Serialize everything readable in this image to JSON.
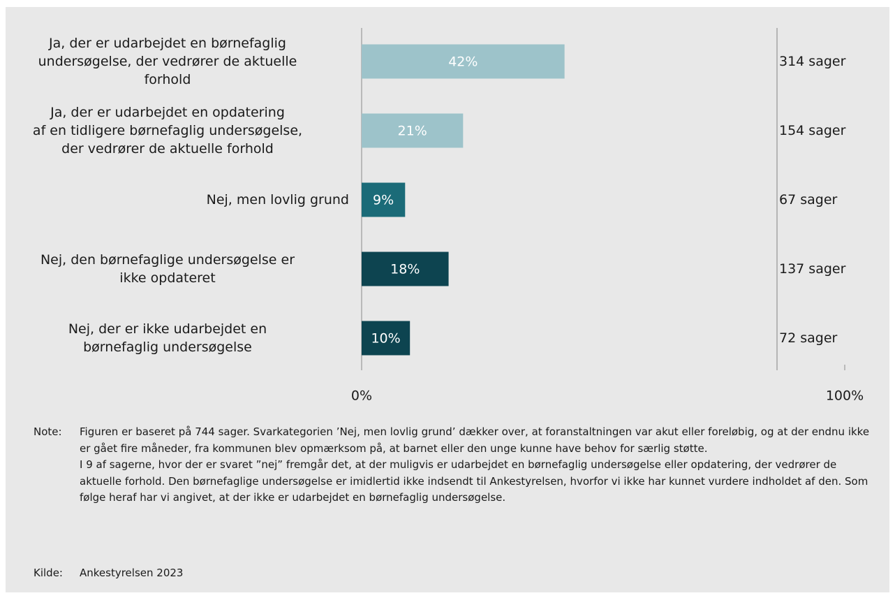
{
  "chart_data": {
    "type": "barh",
    "categories": [
      "Ja, der er udarbejdet en børnefaglig\nundersøgelse, der vedrører de aktuelle\nforhold",
      "Ja, der er udarbejdet en opdatering\naf en tidligere børnefaglig undersøgelse,\nder vedrører de aktuelle forhold",
      "Nej, men lovlig grund",
      "Nej, den børnefaglige undersøgelse er\nikke opdateret",
      "Nej, der er ikke udarbejdet en\nbørnefaglig undersøgelse"
    ],
    "values": [
      42,
      21,
      9,
      18,
      10
    ],
    "value_labels": [
      "42%",
      "21%",
      "9%",
      "18%",
      "10%"
    ],
    "colors": [
      "#9dc3ca",
      "#9dc3ca",
      "#1b6b78",
      "#0d4450",
      "#0d4450"
    ],
    "annotations": [
      "314 sager",
      "154 sager",
      "67 sager",
      "137 sager",
      "72 sager"
    ],
    "xlim": [
      0,
      100
    ],
    "xticks": [
      {
        "value": 0,
        "label": "0%"
      },
      {
        "value": 100,
        "label": "100%"
      }
    ],
    "note_label": "Note:",
    "notes": [
      "Figuren er baseret på 744 sager. Svarkategorien ’Nej, men lovlig grund’ dækker over, at foranstaltningen var akut eller foreløbig, og at der endnu ikke er gået fire måneder, fra kommunen blev opmærksom på, at barnet eller den unge kunne have behov for særlig støtte.",
      "I 9 af sagerne, hvor der er svaret ”nej” fremgår det, at der muligvis er udarbejdet en børnefaglig undersøgelse eller opdatering, der vedrører de aktuelle forhold. Den børnefaglige undersøgelse er imidlertid ikke indsendt til Ankestyrelsen, hvorfor vi ikke har kunnet vurdere indholdet af den. Som følge heraf har vi angivet, at der ikke er udarbejdet en børnefaglig undersøgelse."
    ],
    "source_label": "Kilde:",
    "source": "Ankestyrelsen 2023"
  }
}
